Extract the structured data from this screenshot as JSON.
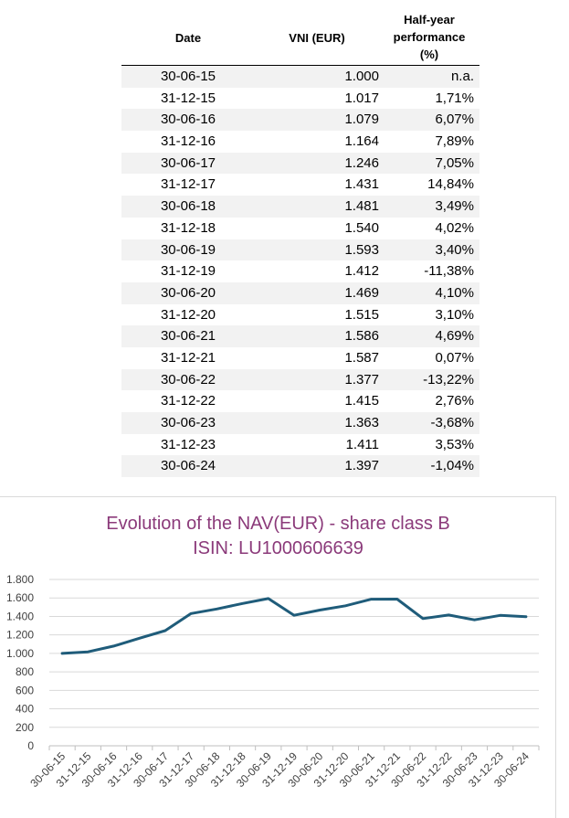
{
  "table": {
    "headers": {
      "date": "Date",
      "vni": "VNI (EUR)",
      "perf_line1": "Half-year",
      "perf_line2": "performance",
      "perf_line3": "(%)"
    },
    "rows": [
      {
        "date": "30-06-15",
        "vni": "1.000",
        "perf": "n.a."
      },
      {
        "date": "31-12-15",
        "vni": "1.017",
        "perf": "1,71%"
      },
      {
        "date": "30-06-16",
        "vni": "1.079",
        "perf": "6,07%"
      },
      {
        "date": "31-12-16",
        "vni": "1.164",
        "perf": "7,89%"
      },
      {
        "date": "30-06-17",
        "vni": "1.246",
        "perf": "7,05%"
      },
      {
        "date": "31-12-17",
        "vni": "1.431",
        "perf": "14,84%"
      },
      {
        "date": "30-06-18",
        "vni": "1.481",
        "perf": "3,49%"
      },
      {
        "date": "31-12-18",
        "vni": "1.540",
        "perf": "4,02%"
      },
      {
        "date": "30-06-19",
        "vni": "1.593",
        "perf": "3,40%"
      },
      {
        "date": "31-12-19",
        "vni": "1.412",
        "perf": "-11,38%"
      },
      {
        "date": "30-06-20",
        "vni": "1.469",
        "perf": "4,10%"
      },
      {
        "date": "31-12-20",
        "vni": "1.515",
        "perf": "3,10%"
      },
      {
        "date": "30-06-21",
        "vni": "1.586",
        "perf": "4,69%"
      },
      {
        "date": "31-12-21",
        "vni": "1.587",
        "perf": "0,07%"
      },
      {
        "date": "30-06-22",
        "vni": "1.377",
        "perf": "-13,22%"
      },
      {
        "date": "31-12-22",
        "vni": "1.415",
        "perf": "2,76%"
      },
      {
        "date": "30-06-23",
        "vni": "1.363",
        "perf": "-3,68%"
      },
      {
        "date": "31-12-23",
        "vni": "1.411",
        "perf": "3,53%"
      },
      {
        "date": "30-06-24",
        "vni": "1.397",
        "perf": "-1,04%"
      }
    ]
  },
  "chart_data": {
    "type": "line",
    "title": "Evolution of the NAV(EUR) - share class B",
    "subtitle": "ISIN: LU1000606639",
    "xlabel": "",
    "ylabel": "",
    "ylim": [
      0,
      1800
    ],
    "yticks": [
      0,
      200,
      400,
      600,
      800,
      1000,
      1200,
      1400,
      1600,
      1800
    ],
    "ytick_labels": [
      "0",
      "200",
      "400",
      "600",
      "800",
      "1.000",
      "1.200",
      "1.400",
      "1.600",
      "1.800"
    ],
    "grid": true,
    "line_color": "#1f5c7a",
    "categories": [
      "30-06-15",
      "31-12-15",
      "30-06-16",
      "31-12-16",
      "30-06-17",
      "31-12-17",
      "30-06-18",
      "31-12-18",
      "30-06-19",
      "31-12-19",
      "30-06-20",
      "31-12-20",
      "30-06-21",
      "31-12-21",
      "30-06-22",
      "31-12-22",
      "30-06-23",
      "31-12-23",
      "30-06-24"
    ],
    "values": [
      1000,
      1017,
      1079,
      1164,
      1246,
      1431,
      1481,
      1540,
      1593,
      1412,
      1469,
      1515,
      1586,
      1587,
      1377,
      1415,
      1363,
      1411,
      1397
    ]
  }
}
